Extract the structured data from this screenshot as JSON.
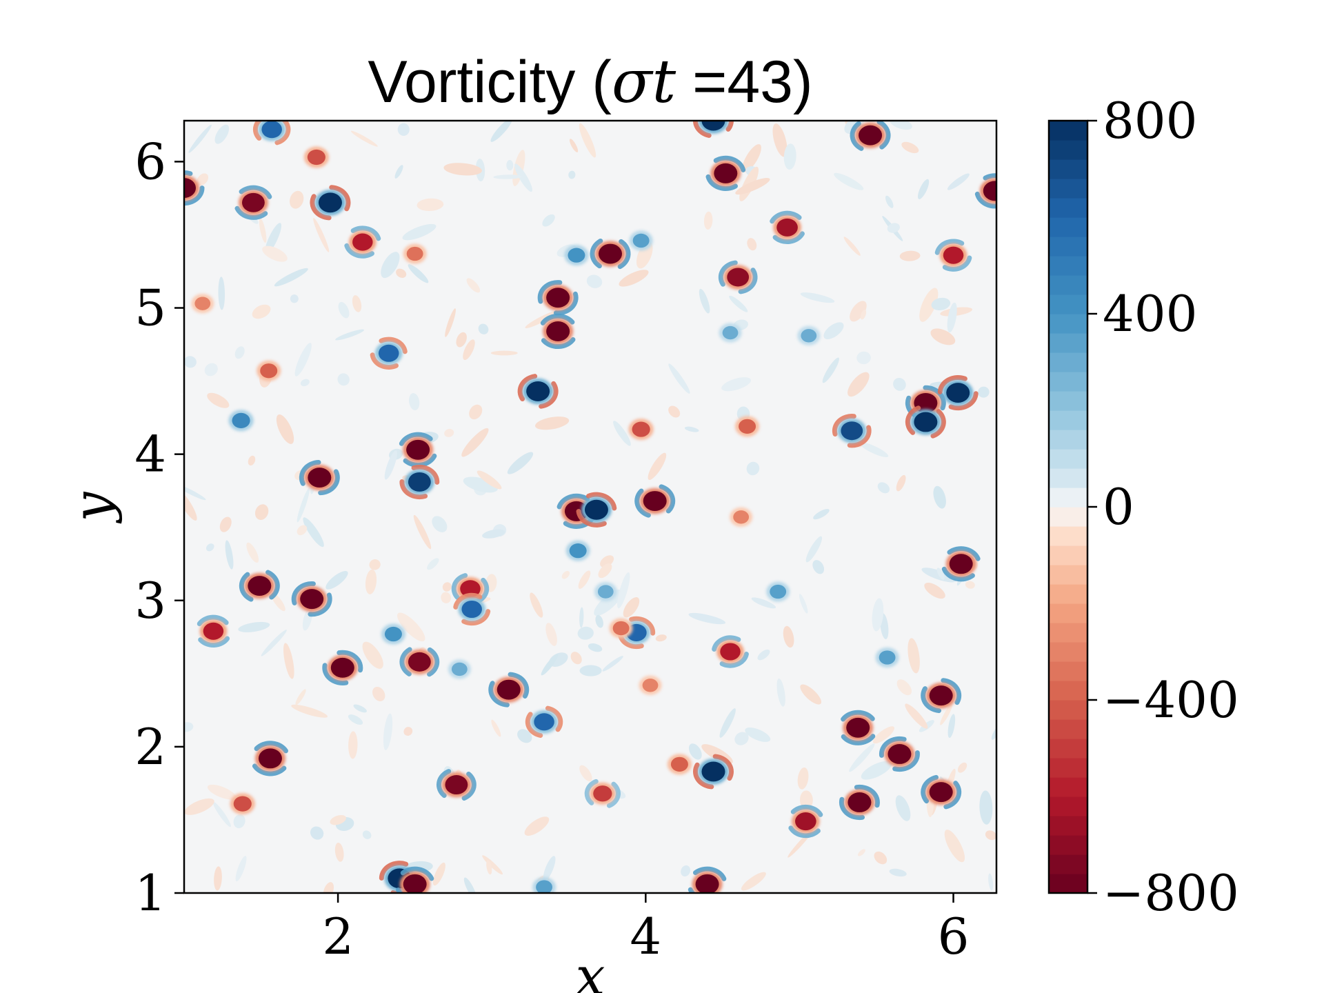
{
  "chart_data": {
    "type": "heatmap",
    "title": {
      "prefix": "Vorticity (",
      "symbol": "σt",
      "equals": " =",
      "value": "43",
      "suffix": ")"
    },
    "xlabel": "x",
    "ylabel": "y",
    "xlim": [
      1,
      6.28
    ],
    "ylim": [
      1,
      6.28
    ],
    "x_ticks": [
      {
        "value": 2,
        "label": "2"
      },
      {
        "value": 4,
        "label": "4"
      },
      {
        "value": 6,
        "label": "6"
      }
    ],
    "y_ticks": [
      {
        "value": 1,
        "label": "1"
      },
      {
        "value": 2,
        "label": "2"
      },
      {
        "value": 3,
        "label": "3"
      },
      {
        "value": 4,
        "label": "4"
      },
      {
        "value": 5,
        "label": "5"
      },
      {
        "value": 6,
        "label": "6"
      }
    ],
    "colorbar": {
      "colormap": "RdBu",
      "range": [
        -800,
        800
      ],
      "levels": 40,
      "ticks": [
        {
          "value": 800,
          "label": "800"
        },
        {
          "value": 400,
          "label": "400"
        },
        {
          "value": 0,
          "label": "0"
        },
        {
          "value": -400,
          "label": "−400"
        },
        {
          "value": -800,
          "label": "−800"
        }
      ]
    },
    "colors": {
      "positive": "#0b3d7a",
      "negative": "#7a0c1e",
      "background": "#f5f5f5"
    },
    "vortices": [
      {
        "x": 1.0,
        "y": 5.82,
        "w": -800
      },
      {
        "x": 1.45,
        "y": 5.72,
        "w": -750
      },
      {
        "x": 1.95,
        "y": 5.72,
        "w": 800
      },
      {
        "x": 1.57,
        "y": 6.22,
        "w": 600
      },
      {
        "x": 1.86,
        "y": 6.03,
        "w": -450
      },
      {
        "x": 2.16,
        "y": 5.45,
        "w": -600
      },
      {
        "x": 2.5,
        "y": 5.37,
        "w": -350
      },
      {
        "x": 1.12,
        "y": 5.03,
        "w": -300
      },
      {
        "x": 1.55,
        "y": 4.57,
        "w": -400
      },
      {
        "x": 2.33,
        "y": 4.69,
        "w": 600
      },
      {
        "x": 1.37,
        "y": 4.23,
        "w": 450
      },
      {
        "x": 1.88,
        "y": 3.84,
        "w": -800
      },
      {
        "x": 2.52,
        "y": 4.03,
        "w": -800
      },
      {
        "x": 2.53,
        "y": 3.81,
        "w": 750
      },
      {
        "x": 1.49,
        "y": 3.1,
        "w": -800
      },
      {
        "x": 1.83,
        "y": 3.01,
        "w": -800
      },
      {
        "x": 1.19,
        "y": 2.79,
        "w": -600
      },
      {
        "x": 2.03,
        "y": 2.54,
        "w": -800
      },
      {
        "x": 2.53,
        "y": 2.58,
        "w": -750
      },
      {
        "x": 2.36,
        "y": 2.77,
        "w": 400
      },
      {
        "x": 1.56,
        "y": 1.92,
        "w": -800
      },
      {
        "x": 1.38,
        "y": 1.61,
        "w": -450
      },
      {
        "x": 2.77,
        "y": 1.74,
        "w": -750
      },
      {
        "x": 2.4,
        "y": 1.1,
        "w": 800
      },
      {
        "x": 2.5,
        "y": 1.06,
        "w": -800
      },
      {
        "x": 3.11,
        "y": 2.39,
        "w": -800
      },
      {
        "x": 2.86,
        "y": 3.08,
        "w": -600
      },
      {
        "x": 2.87,
        "y": 2.94,
        "w": 600
      },
      {
        "x": 2.79,
        "y": 2.53,
        "w": 300
      },
      {
        "x": 3.34,
        "y": 2.17,
        "w": 600
      },
      {
        "x": 3.3,
        "y": 4.43,
        "w": 800
      },
      {
        "x": 3.55,
        "y": 3.61,
        "w": -800
      },
      {
        "x": 3.68,
        "y": 3.62,
        "w": 800
      },
      {
        "x": 4.06,
        "y": 3.68,
        "w": -800
      },
      {
        "x": 3.56,
        "y": 3.34,
        "w": 400
      },
      {
        "x": 3.74,
        "y": 3.06,
        "w": 300
      },
      {
        "x": 3.94,
        "y": 2.78,
        "w": 600
      },
      {
        "x": 3.84,
        "y": 2.81,
        "w": -350
      },
      {
        "x": 3.43,
        "y": 5.07,
        "w": -800
      },
      {
        "x": 3.43,
        "y": 4.84,
        "w": -800
      },
      {
        "x": 3.55,
        "y": 5.36,
        "w": 400
      },
      {
        "x": 3.77,
        "y": 5.37,
        "w": -800
      },
      {
        "x": 3.97,
        "y": 5.46,
        "w": 350
      },
      {
        "x": 3.97,
        "y": 4.17,
        "w": -450
      },
      {
        "x": 4.03,
        "y": 2.42,
        "w": -300
      },
      {
        "x": 3.72,
        "y": 1.68,
        "w": -500
      },
      {
        "x": 3.34,
        "y": 1.04,
        "w": 350
      },
      {
        "x": 4.4,
        "y": 1.06,
        "w": -800
      },
      {
        "x": 4.44,
        "y": 1.83,
        "w": 800
      },
      {
        "x": 4.22,
        "y": 1.88,
        "w": -400
      },
      {
        "x": 4.55,
        "y": 2.65,
        "w": -600
      },
      {
        "x": 4.52,
        "y": 5.92,
        "w": -800
      },
      {
        "x": 4.44,
        "y": 6.28,
        "w": 800
      },
      {
        "x": 4.6,
        "y": 5.21,
        "w": -700
      },
      {
        "x": 4.55,
        "y": 4.83,
        "w": 300
      },
      {
        "x": 4.66,
        "y": 4.19,
        "w": -400
      },
      {
        "x": 4.62,
        "y": 3.57,
        "w": -300
      },
      {
        "x": 4.86,
        "y": 3.06,
        "w": 350
      },
      {
        "x": 4.92,
        "y": 5.55,
        "w": -650
      },
      {
        "x": 5.06,
        "y": 4.81,
        "w": 300
      },
      {
        "x": 5.46,
        "y": 6.18,
        "w": -800
      },
      {
        "x": 5.34,
        "y": 4.16,
        "w": 700
      },
      {
        "x": 5.38,
        "y": 2.13,
        "w": -800
      },
      {
        "x": 5.39,
        "y": 1.62,
        "w": -800
      },
      {
        "x": 5.57,
        "y": 2.61,
        "w": 350
      },
      {
        "x": 5.65,
        "y": 1.95,
        "w": -800
      },
      {
        "x": 5.04,
        "y": 1.49,
        "w": -650
      },
      {
        "x": 5.82,
        "y": 4.35,
        "w": -800
      },
      {
        "x": 5.82,
        "y": 4.22,
        "w": 800
      },
      {
        "x": 6.03,
        "y": 4.42,
        "w": 800
      },
      {
        "x": 6.05,
        "y": 3.25,
        "w": -800
      },
      {
        "x": 5.92,
        "y": 2.35,
        "w": -800
      },
      {
        "x": 5.92,
        "y": 1.69,
        "w": -800
      },
      {
        "x": 6.0,
        "y": 5.36,
        "w": -600
      },
      {
        "x": 6.27,
        "y": 5.8,
        "w": -800
      }
    ]
  }
}
